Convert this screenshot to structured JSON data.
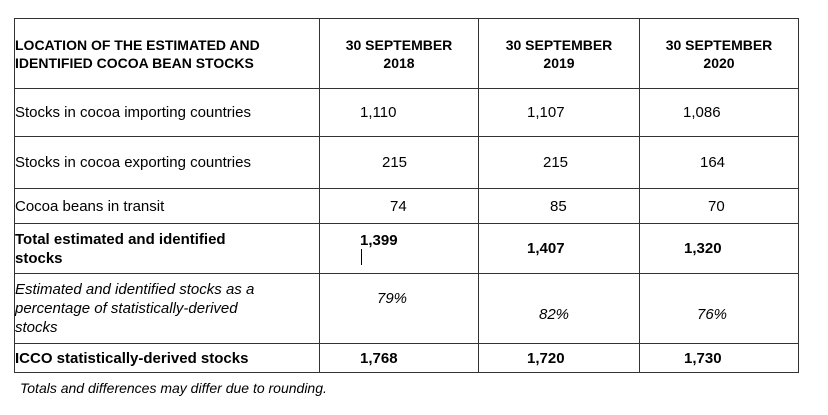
{
  "header": {
    "col0": [
      "LOCATION OF THE ESTIMATED AND",
      "IDENTIFIED COCOA BEAN STOCKS"
    ],
    "col1": [
      "30 SEPTEMBER",
      "2018"
    ],
    "col2": [
      "30 SEPTEMBER",
      "2019"
    ],
    "col3": [
      "30 SEPTEMBER",
      "2020"
    ]
  },
  "rows": [
    {
      "label": "Stocks in cocoa importing countries",
      "v2018": "1,110",
      "v2019": "1,107",
      "v2020": "1,086"
    },
    {
      "label": "Stocks in cocoa exporting countries",
      "v2018": "215",
      "v2019": "215",
      "v2020": "164"
    },
    {
      "label": "Cocoa beans in transit",
      "v2018": "74",
      "v2019": "85",
      "v2020": "70"
    },
    {
      "label": [
        "Total estimated and identified",
        "stocks"
      ],
      "v2018": "1,399",
      "v2019": "1,407",
      "v2020": "1,320"
    },
    {
      "label": [
        "Estimated and identified stocks as a",
        "percentage of statistically-derived",
        "stocks"
      ],
      "v2018": "79%",
      "v2019": "82%",
      "v2020": "76%"
    },
    {
      "label": "ICCO statistically-derived stocks",
      "v2018": "1,768",
      "v2019": "1,720",
      "v2020": "1,730"
    }
  ],
  "footnote": "Totals and differences may differ due to rounding."
}
